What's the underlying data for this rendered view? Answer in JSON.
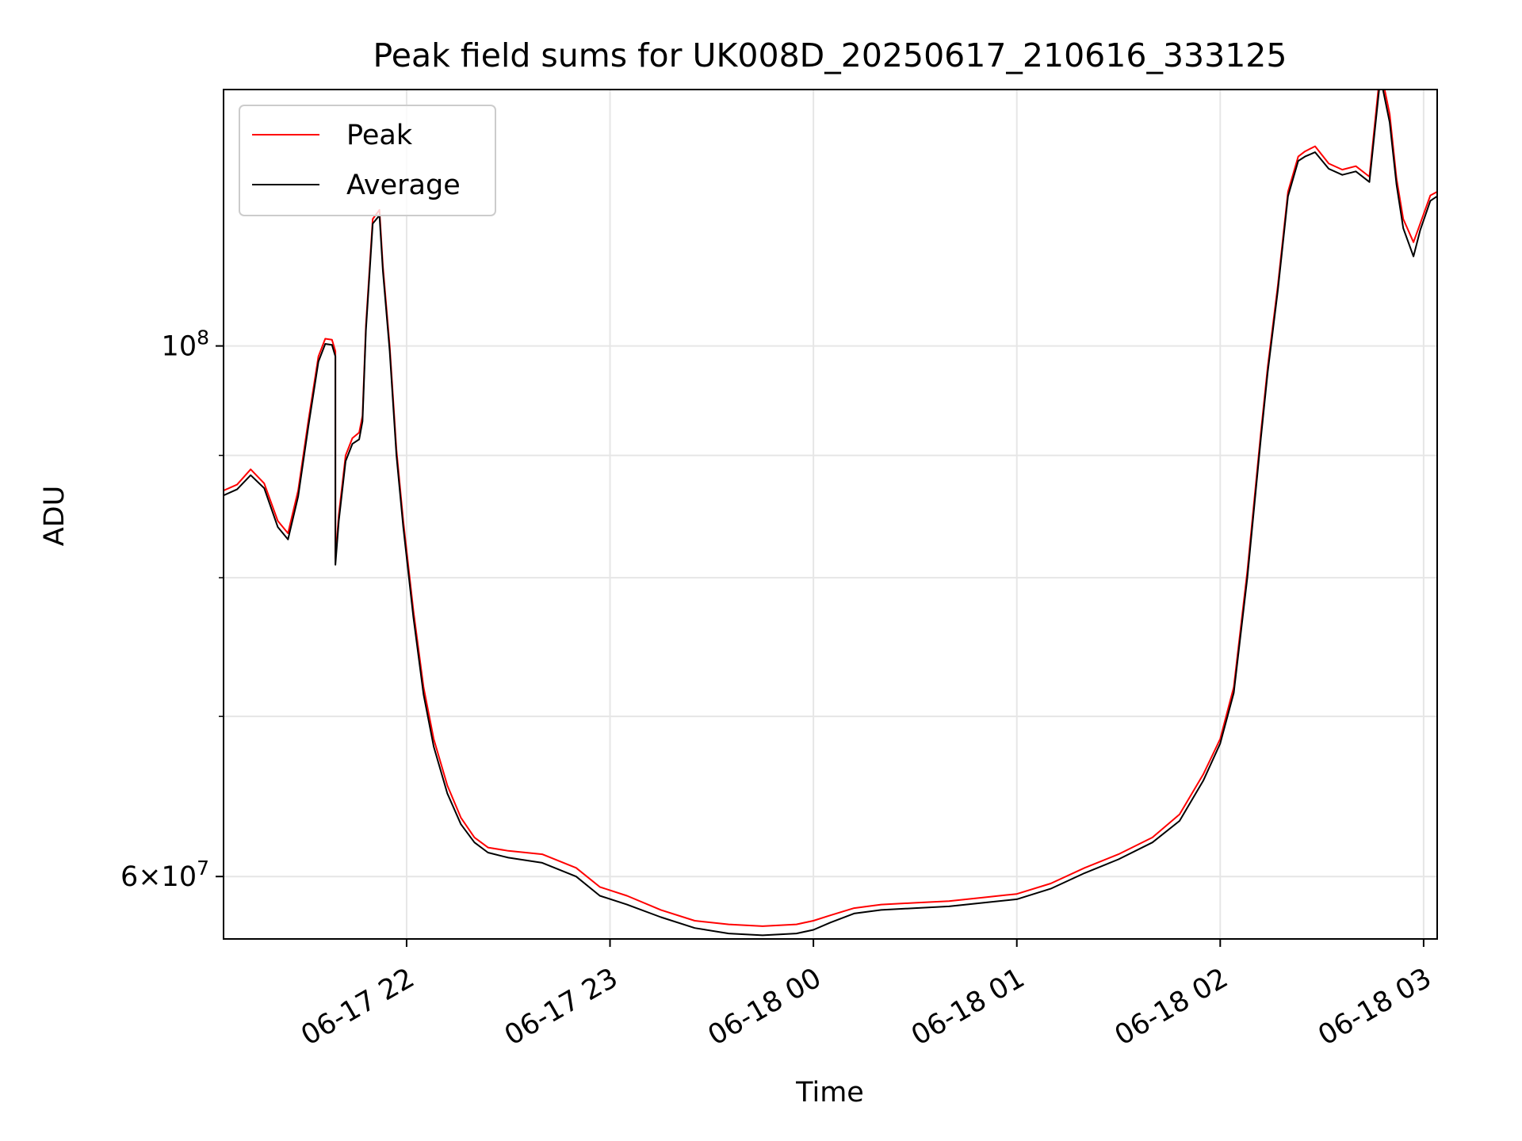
{
  "chart_data": {
    "type": "line",
    "title": "Peak field sums for UK008D_20250617_210616_333125",
    "xlabel": "Time",
    "ylabel": "ADU",
    "x_format": "MM-DD HH",
    "xlim": [
      "2025-06-17 21:06",
      "2025-06-18 03:04"
    ],
    "ylim": [
      56500000,
      128000000
    ],
    "yscale": "log",
    "x_ticks": [
      "06-17 22",
      "06-17 23",
      "06-18 00",
      "06-18 01",
      "06-18 02",
      "06-18 03"
    ],
    "x_tick_values": [
      "2025-06-17 22:00",
      "2025-06-17 23:00",
      "2025-06-18 00:00",
      "2025-06-18 01:00",
      "2025-06-18 02:00",
      "2025-06-18 03:00"
    ],
    "y_major_ticks": [
      {
        "value": 60000000,
        "mantissa": "6",
        "exponent": "7"
      },
      {
        "value": 100000000,
        "mantissa": "",
        "exponent": "8"
      }
    ],
    "y_minor_ticks": [
      70000000,
      80000000,
      90000000
    ],
    "grid": true,
    "legend": {
      "position": "top-left"
    },
    "colors": {
      "peak": "#ff0000",
      "average": "#000000",
      "grid": "#e6e6e6"
    },
    "series": [
      {
        "name": "Peak",
        "color": "#ff0000",
        "x": [
          "2025-06-17 21:06",
          "2025-06-17 21:10",
          "2025-06-17 21:14",
          "2025-06-17 21:18",
          "2025-06-17 21:22",
          "2025-06-17 21:25",
          "2025-06-17 21:28",
          "2025-06-17 21:31",
          "2025-06-17 21:34",
          "2025-06-17 21:36",
          "2025-06-17 21:38",
          "2025-06-17 21:39",
          "2025-06-17 21:39",
          "2025-06-17 21:40",
          "2025-06-17 21:42",
          "2025-06-17 21:44",
          "2025-06-17 21:46",
          "2025-06-17 21:47",
          "2025-06-17 21:48",
          "2025-06-17 21:50",
          "2025-06-17 21:52",
          "2025-06-17 21:53",
          "2025-06-17 21:55",
          "2025-06-17 21:57",
          "2025-06-17 21:59",
          "2025-06-17 22:02",
          "2025-06-17 22:05",
          "2025-06-17 22:08",
          "2025-06-17 22:12",
          "2025-06-17 22:16",
          "2025-06-17 22:20",
          "2025-06-17 22:24",
          "2025-06-17 22:30",
          "2025-06-17 22:40",
          "2025-06-17 22:50",
          "2025-06-17 22:57",
          "2025-06-17 23:05",
          "2025-06-17 23:15",
          "2025-06-17 23:25",
          "2025-06-17 23:35",
          "2025-06-17 23:45",
          "2025-06-17 23:55",
          "2025-06-18 00:00",
          "2025-06-18 00:05",
          "2025-06-18 00:12",
          "2025-06-18 00:20",
          "2025-06-18 00:30",
          "2025-06-18 00:40",
          "2025-06-18 00:50",
          "2025-06-18 01:00",
          "2025-06-18 01:10",
          "2025-06-18 01:20",
          "2025-06-18 01:30",
          "2025-06-18 01:40",
          "2025-06-18 01:48",
          "2025-06-18 01:55",
          "2025-06-18 02:00",
          "2025-06-18 02:04",
          "2025-06-18 02:08",
          "2025-06-18 02:12",
          "2025-06-18 02:14",
          "2025-06-18 02:17",
          "2025-06-18 02:20",
          "2025-06-18 02:23",
          "2025-06-18 02:25",
          "2025-06-18 02:28",
          "2025-06-18 02:32",
          "2025-06-18 02:36",
          "2025-06-18 02:40",
          "2025-06-18 02:44",
          "2025-06-18 02:47",
          "2025-06-18 02:48",
          "2025-06-18 02:50",
          "2025-06-18 02:52",
          "2025-06-18 02:54",
          "2025-06-18 02:57",
          "2025-06-18 02:59",
          "2025-06-18 03:02",
          "2025-06-18 03:04"
        ],
        "y": [
          87000000,
          87500000,
          88800000,
          87600000,
          84500000,
          83500000,
          87000000,
          93000000,
          99000000,
          100700000,
          100600000,
          99500000,
          81500000,
          85000000,
          90000000,
          91500000,
          92000000,
          93500000,
          102000000,
          113000000,
          114000000,
          108000000,
          100000000,
          90500000,
          84500000,
          77500000,
          72000000,
          68500000,
          65500000,
          63500000,
          62300000,
          61700000,
          61500000,
          61300000,
          60500000,
          59400000,
          58900000,
          58100000,
          57500000,
          57300000,
          57200000,
          57300000,
          57500000,
          57800000,
          58200000,
          58400000,
          58500000,
          58600000,
          58800000,
          59000000,
          59600000,
          60500000,
          61300000,
          62300000,
          63700000,
          66200000,
          68500000,
          72000000,
          80500000,
          92000000,
          98000000,
          106000000,
          116000000,
          120000000,
          120600000,
          121200000,
          119200000,
          118500000,
          118900000,
          117700000,
          129500000,
          129000000,
          125000000,
          117500000,
          113000000,
          110500000,
          112500000,
          115600000,
          116000000
        ]
      },
      {
        "name": "Average",
        "color": "#000000",
        "x": [
          "2025-06-17 21:06",
          "2025-06-17 21:10",
          "2025-06-17 21:14",
          "2025-06-17 21:18",
          "2025-06-17 21:22",
          "2025-06-17 21:25",
          "2025-06-17 21:28",
          "2025-06-17 21:31",
          "2025-06-17 21:34",
          "2025-06-17 21:36",
          "2025-06-17 21:38",
          "2025-06-17 21:39",
          "2025-06-17 21:39",
          "2025-06-17 21:40",
          "2025-06-17 21:42",
          "2025-06-17 21:44",
          "2025-06-17 21:46",
          "2025-06-17 21:47",
          "2025-06-17 21:48",
          "2025-06-17 21:50",
          "2025-06-17 21:52",
          "2025-06-17 21:53",
          "2025-06-17 21:55",
          "2025-06-17 21:57",
          "2025-06-17 21:59",
          "2025-06-17 22:02",
          "2025-06-17 22:05",
          "2025-06-17 22:08",
          "2025-06-17 22:12",
          "2025-06-17 22:16",
          "2025-06-17 22:20",
          "2025-06-17 22:24",
          "2025-06-17 22:30",
          "2025-06-17 22:40",
          "2025-06-17 22:50",
          "2025-06-17 22:57",
          "2025-06-17 23:05",
          "2025-06-17 23:15",
          "2025-06-17 23:25",
          "2025-06-17 23:35",
          "2025-06-17 23:45",
          "2025-06-17 23:55",
          "2025-06-18 00:00",
          "2025-06-18 00:05",
          "2025-06-18 00:12",
          "2025-06-18 00:20",
          "2025-06-18 00:30",
          "2025-06-18 00:40",
          "2025-06-18 00:50",
          "2025-06-18 01:00",
          "2025-06-18 01:10",
          "2025-06-18 01:20",
          "2025-06-18 01:30",
          "2025-06-18 01:40",
          "2025-06-18 01:48",
          "2025-06-18 01:55",
          "2025-06-18 02:00",
          "2025-06-18 02:04",
          "2025-06-18 02:08",
          "2025-06-18 02:12",
          "2025-06-18 02:14",
          "2025-06-18 02:17",
          "2025-06-18 02:20",
          "2025-06-18 02:23",
          "2025-06-18 02:25",
          "2025-06-18 02:28",
          "2025-06-18 02:32",
          "2025-06-18 02:36",
          "2025-06-18 02:40",
          "2025-06-18 02:44",
          "2025-06-18 02:47",
          "2025-06-18 02:48",
          "2025-06-18 02:50",
          "2025-06-18 02:52",
          "2025-06-18 02:54",
          "2025-06-18 02:57",
          "2025-06-18 02:59",
          "2025-06-18 03:02",
          "2025-06-18 03:04"
        ],
        "y": [
          86600000,
          87100000,
          88300000,
          87200000,
          84000000,
          83000000,
          86500000,
          92500000,
          98500000,
          100200000,
          100100000,
          99000000,
          81000000,
          84500000,
          89500000,
          91000000,
          91400000,
          93000000,
          101500000,
          112500000,
          113400000,
          107500000,
          99500000,
          90000000,
          84000000,
          77000000,
          71500000,
          68000000,
          65000000,
          63100000,
          62000000,
          61400000,
          61100000,
          60800000,
          60000000,
          58900000,
          58400000,
          57700000,
          57100000,
          56800000,
          56700000,
          56800000,
          57000000,
          57400000,
          57900000,
          58100000,
          58200000,
          58300000,
          58500000,
          58700000,
          59300000,
          60200000,
          61000000,
          62000000,
          63300000,
          65800000,
          68200000,
          71600000,
          80000000,
          91500000,
          97500000,
          105500000,
          115500000,
          119500000,
          120000000,
          120500000,
          118600000,
          117900000,
          118300000,
          117100000,
          128500000,
          128000000,
          124000000,
          116800000,
          112000000,
          109000000,
          111800000,
          115000000,
          115500000
        ]
      }
    ]
  }
}
